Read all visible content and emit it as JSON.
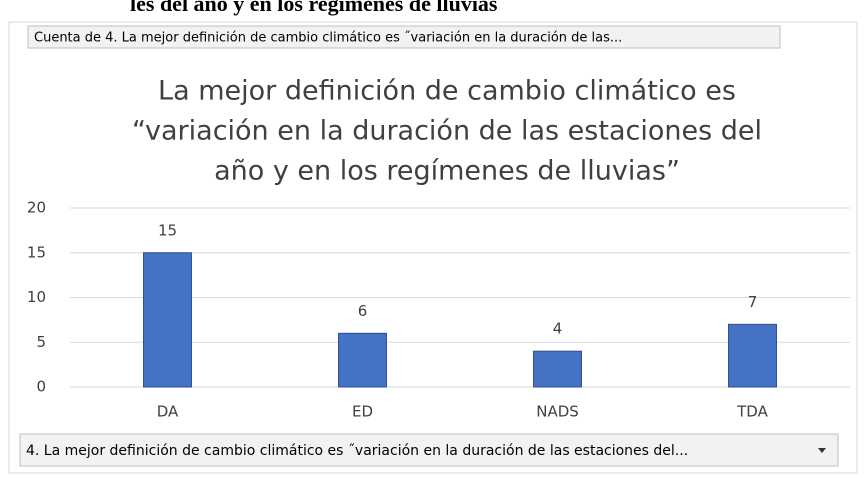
{
  "page_heading": "les del año y en los regímenes de lluvias",
  "field_button": "Cuenta de 4. La mejor definición de cambio climático es ˝variación en la duración de las...",
  "axis_dropdown": "4. La mejor definición de cambio climático es ˝variación en la duración de las estaciones del...",
  "chart_data": {
    "type": "bar",
    "title": [
      "La mejor definición de cambio climático es",
      "“variación en la duración de las estaciones del",
      "año y en los regímenes de lluvias”"
    ],
    "categories": [
      "DA",
      "ED",
      "NADS",
      "TDA"
    ],
    "values": [
      15,
      6,
      4,
      7
    ],
    "color": "#4472c4",
    "ylim": [
      0,
      20
    ],
    "yticks": [
      0,
      5,
      10,
      15,
      20
    ],
    "grid": true
  }
}
